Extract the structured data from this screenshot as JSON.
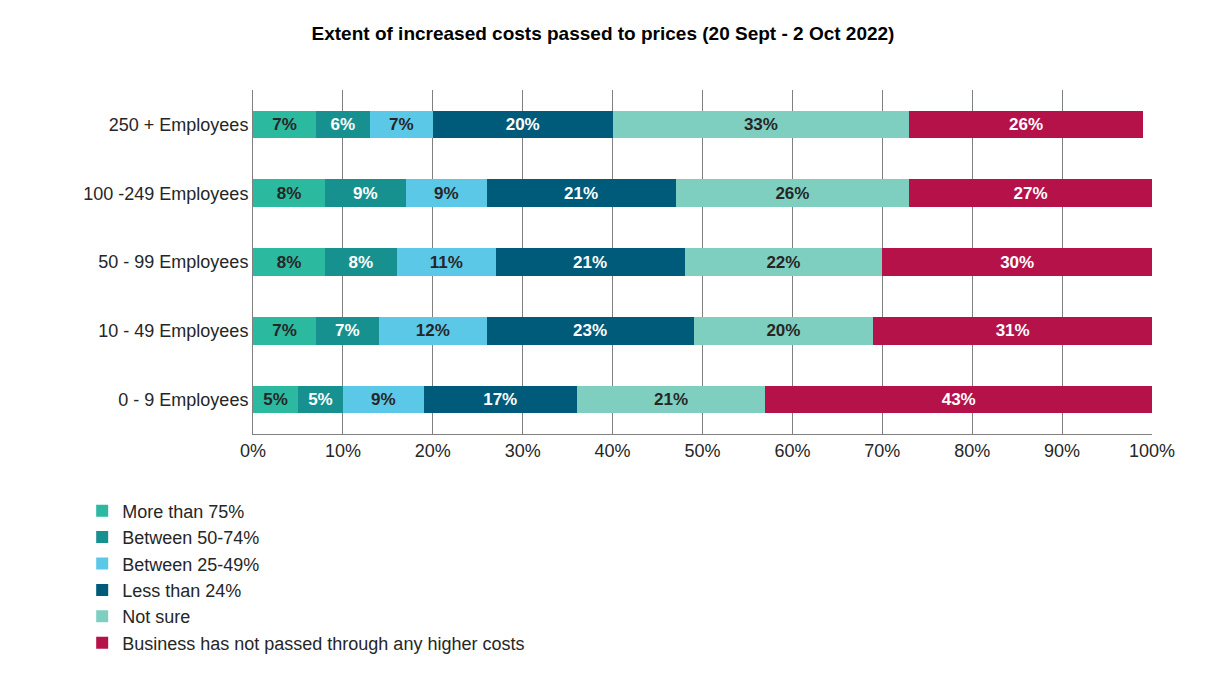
{
  "chart_data": {
    "type": "bar",
    "title": "Extent of increased costs passed to prices (20 Sept - 2 Oct 2022)",
    "orientation": "horizontal",
    "stacked": true,
    "data_labels": true,
    "grid": true,
    "legend": "bottom",
    "categories": [
      "250 + Employees",
      "100 -249 Employees",
      "50 - 99 Employees",
      "10 - 49 Employees",
      "0 - 9 Employees"
    ],
    "xlim": [
      0,
      100
    ],
    "xticks": [
      {
        "value": 0,
        "label": "0%"
      },
      {
        "value": 10,
        "label": "10%"
      },
      {
        "value": 20,
        "label": "20%"
      },
      {
        "value": 30,
        "label": "30%"
      },
      {
        "value": 40,
        "label": "40%"
      },
      {
        "value": 50,
        "label": "50%"
      },
      {
        "value": 60,
        "label": "60%"
      },
      {
        "value": 70,
        "label": "70%"
      },
      {
        "value": 80,
        "label": "80%"
      },
      {
        "value": 90,
        "label": "90%"
      },
      {
        "value": 100,
        "label": "100%"
      }
    ],
    "series": [
      {
        "name": "More than 75%",
        "color": "#2bb9a0",
        "values": [
          7,
          8,
          8,
          7,
          5
        ],
        "value_labels": [
          "7%",
          "8%",
          "8%",
          "7%",
          "5%"
        ]
      },
      {
        "name": "Between 50-74%",
        "color": "#17918f",
        "values": [
          6,
          9,
          8,
          7,
          5
        ],
        "value_labels": [
          "6%",
          "9%",
          "8%",
          "7%",
          "5%"
        ]
      },
      {
        "name": "Between 25-49%",
        "color": "#5cc8e8",
        "values": [
          7,
          9,
          11,
          12,
          9
        ],
        "value_labels": [
          "7%",
          "9%",
          "11%",
          "12%",
          "9%"
        ]
      },
      {
        "name": "Less than 24%",
        "color": "#005b7a",
        "values": [
          20,
          21,
          21,
          23,
          17
        ],
        "value_labels": [
          "20%",
          "21%",
          "21%",
          "23%",
          "17%"
        ]
      },
      {
        "name": "Not sure",
        "color": "#7fcfc0",
        "values": [
          33,
          26,
          22,
          20,
          21
        ],
        "value_labels": [
          "33%",
          "26%",
          "22%",
          "20%",
          "21%"
        ]
      },
      {
        "name": "Business has not passed through any higher costs",
        "color": "#b5124a",
        "values": [
          26,
          27,
          30,
          31,
          43
        ],
        "value_labels": [
          "26%",
          "27%",
          "30%",
          "31%",
          "43%"
        ]
      }
    ]
  }
}
